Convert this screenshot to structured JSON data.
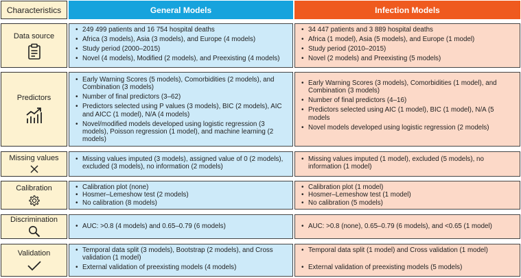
{
  "header": {
    "characteristics": "Characteristics",
    "general": "General Models",
    "infection": "Infection Models"
  },
  "rows": [
    {
      "label": "Data source",
      "icon": "clipboard-icon",
      "general": [
        "249 499 patients and 16 754 hospital deaths",
        "Africa (3 models), Asia (3 models), and Europe (4 models)",
        "Study period (2000–2015)",
        "Novel (4 models), Modified (2 models), and Preexisting (4 models)"
      ],
      "infection": [
        "34 447 patients and 3 889 hospital deaths",
        "Africa (1 model), Asia (5 models), and Europe (1 model)",
        "Study period (2010–2015)",
        "Novel (2 models) and Preexisting (5 models)"
      ]
    },
    {
      "label": "Predictors",
      "icon": "trend-chart-icon",
      "general": [
        "Early Warning Scores (5 models), Comorbidities (2 models), and Combination (3 models)",
        "Number of final predictors (3–62)",
        "Predictors selected using P values (3 models), BIC (2 models), AIC and AICC (1 model), N/A (4 models)",
        "Novel/modified models developed using logistic regression (3 models), Poisson regression (1 model), and machine learning (2 models)"
      ],
      "infection": [
        "Early Warning Scores (3 models), Comorbidities (1 model), and Combination (3 models)",
        "Number of final predictors (4–16)",
        "Predictors selected using AIC (1 model), BIC (1 model), N/A (5 models",
        "Novel models developed using logistic regression (2 models)"
      ]
    },
    {
      "label": "Missing values",
      "icon": "x-mark-icon",
      "general": [
        "Missing values imputed (3 models), assigned value of 0 (2 models), excluded (3 models), no information (2 models)"
      ],
      "infection": [
        "Missing values imputed (1 model), excluded (5 models), no information (1 model)"
      ]
    },
    {
      "label": "Calibration",
      "icon": "gear-icon",
      "general": [
        "Calibration plot (none)",
        "Hosmer–Lemeshow test (2 models)",
        "No calibration (8 models)"
      ],
      "infection": [
        "Calibration plot (1 model)",
        "Hosmer–Lemeshow test (1 model)",
        "No calibration (5 models)"
      ]
    },
    {
      "label": "Discrimination",
      "icon": "magnifier-icon",
      "general": [
        "AUC: >0.8 (4 models) and 0.65–0.79 (6 models)"
      ],
      "infection": [
        "AUC: >0.8 (none), 0.65–0.79 (6 models), and <0.65 (1 model)"
      ]
    },
    {
      "label": "Validation",
      "icon": "checkmark-icon",
      "general": [
        "Temporal data split (3 models), Bootstrap (2 models), and Cross validation (1 model)",
        "External validation of preexisting models (4 models)"
      ],
      "infection": [
        "Temporal data split (1 model) and Cross validation (1 model)",
        "External validation of preexisting models (5 models)"
      ]
    }
  ]
}
